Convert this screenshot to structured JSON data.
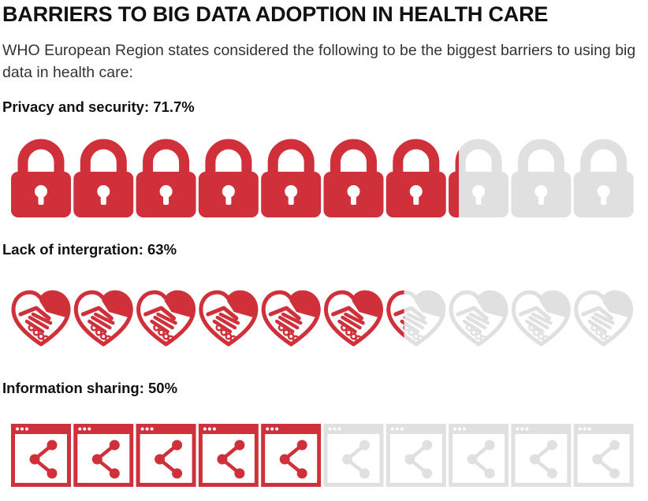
{
  "title": "BARRIERS TO BIG DATA ADOPTION IN HEALTH CARE",
  "subtitle": "WHO European Region states considered the following to be the biggest barriers to using big data in health care:",
  "colors": {
    "filled": "#d0303a",
    "empty": "#e0e0e0",
    "text": "#111111"
  },
  "chart_data": {
    "type": "bar",
    "title": "BARRIERS TO BIG DATA ADOPTION IN HEALTH CARE",
    "unit": "%",
    "icons_per_row": 10,
    "categories": [
      "Privacy and security",
      "Lack of intergration",
      "Information sharing"
    ],
    "values": [
      71.7,
      63,
      50
    ],
    "value_labels": [
      "71.7%",
      "63%",
      "50%"
    ],
    "icons": [
      "lock-icon",
      "handshake-heart-icon",
      "share-window-icon"
    ],
    "ylim": [
      0,
      100
    ]
  }
}
